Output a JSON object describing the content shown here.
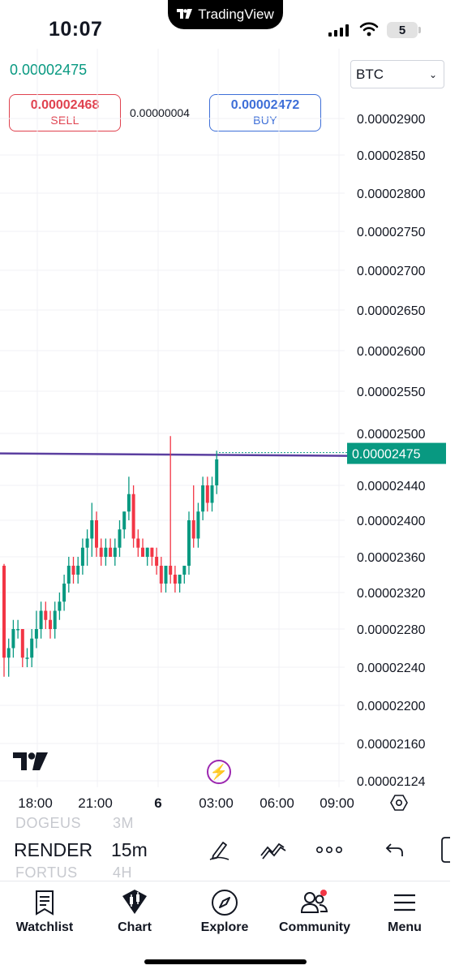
{
  "status_bar": {
    "time": "10:07",
    "island_label": "TradingView",
    "battery": "5"
  },
  "header": {
    "last_price": "0.00002475",
    "pair": "BTC",
    "sell": {
      "price": "0.00002468",
      "label": "SELL"
    },
    "buy": {
      "price": "0.00002472",
      "label": "BUY"
    },
    "spread": "0.00000004"
  },
  "colors": {
    "up": "#089981",
    "down": "#f23645",
    "line": "#5b3fa0",
    "sell": "#e0424f",
    "buy": "#3e6fd8"
  },
  "chart_data": {
    "type": "candlestick",
    "price_axis_labels": [
      "0.00002900",
      "0.00002850",
      "0.00002800",
      "0.00002750",
      "0.00002700",
      "0.00002650",
      "0.00002600",
      "0.00002550",
      "0.00002500",
      "0.00002440",
      "0.00002400",
      "0.00002360",
      "0.00002320",
      "0.00002280",
      "0.00002240",
      "0.00002200",
      "0.00002160",
      "0.00002124"
    ],
    "current_price_label": "0.00002475",
    "horizontal_line": 2.476e-05,
    "time_labels": [
      "18:00",
      "21:00",
      "6",
      "03:00",
      "06:00",
      "09:00"
    ],
    "candles": [
      {
        "o": 2.35e-05,
        "h": 2.352e-05,
        "l": 2.23e-05,
        "c": 2.25e-05
      },
      {
        "o": 2.25e-05,
        "h": 2.27e-05,
        "l": 2.23e-05,
        "c": 2.26e-05
      },
      {
        "o": 2.26e-05,
        "h": 2.29e-05,
        "l": 2.25e-05,
        "c": 2.28e-05
      },
      {
        "o": 2.28e-05,
        "h": 2.29e-05,
        "l": 2.27e-05,
        "c": 2.28e-05
      },
      {
        "o": 2.28e-05,
        "h": 2.28e-05,
        "l": 2.24e-05,
        "c": 2.25e-05
      },
      {
        "o": 2.25e-05,
        "h": 2.26e-05,
        "l": 2.24e-05,
        "c": 2.25e-05
      },
      {
        "o": 2.25e-05,
        "h": 2.28e-05,
        "l": 2.24e-05,
        "c": 2.27e-05
      },
      {
        "o": 2.27e-05,
        "h": 2.3e-05,
        "l": 2.26e-05,
        "c": 2.28e-05
      },
      {
        "o": 2.28e-05,
        "h": 2.31e-05,
        "l": 2.27e-05,
        "c": 2.3e-05
      },
      {
        "o": 2.3e-05,
        "h": 2.31e-05,
        "l": 2.28e-05,
        "c": 2.29e-05
      },
      {
        "o": 2.29e-05,
        "h": 2.3e-05,
        "l": 2.27e-05,
        "c": 2.28e-05
      },
      {
        "o": 2.28e-05,
        "h": 2.31e-05,
        "l": 2.27e-05,
        "c": 2.3e-05
      },
      {
        "o": 2.3e-05,
        "h": 2.32e-05,
        "l": 2.29e-05,
        "c": 2.31e-05
      },
      {
        "o": 2.31e-05,
        "h": 2.34e-05,
        "l": 2.3e-05,
        "c": 2.33e-05
      },
      {
        "o": 2.33e-05,
        "h": 2.36e-05,
        "l": 2.32e-05,
        "c": 2.35e-05
      },
      {
        "o": 2.35e-05,
        "h": 2.36e-05,
        "l": 2.33e-05,
        "c": 2.34e-05
      },
      {
        "o": 2.34e-05,
        "h": 2.36e-05,
        "l": 2.33e-05,
        "c": 2.35e-05
      },
      {
        "o": 2.35e-05,
        "h": 2.38e-05,
        "l": 2.34e-05,
        "c": 2.37e-05
      },
      {
        "o": 2.37e-05,
        "h": 2.39e-05,
        "l": 2.35e-05,
        "c": 2.38e-05
      },
      {
        "o": 2.38e-05,
        "h": 2.42e-05,
        "l": 2.36e-05,
        "c": 2.4e-05
      },
      {
        "o": 2.4e-05,
        "h": 2.41e-05,
        "l": 2.36e-05,
        "c": 2.37e-05
      },
      {
        "o": 2.37e-05,
        "h": 2.38e-05,
        "l": 2.35e-05,
        "c": 2.36e-05
      },
      {
        "o": 2.36e-05,
        "h": 2.38e-05,
        "l": 2.35e-05,
        "c": 2.37e-05
      },
      {
        "o": 2.37e-05,
        "h": 2.38e-05,
        "l": 2.36e-05,
        "c": 2.36e-05
      },
      {
        "o": 2.36e-05,
        "h": 2.38e-05,
        "l": 2.35e-05,
        "c": 2.37e-05
      },
      {
        "o": 2.37e-05,
        "h": 2.4e-05,
        "l": 2.36e-05,
        "c": 2.39e-05
      },
      {
        "o": 2.39e-05,
        "h": 2.41e-05,
        "l": 2.38e-05,
        "c": 2.41e-05
      },
      {
        "o": 2.41e-05,
        "h": 2.45e-05,
        "l": 2.4e-05,
        "c": 2.43e-05
      },
      {
        "o": 2.43e-05,
        "h": 2.44e-05,
        "l": 2.37e-05,
        "c": 2.38e-05
      },
      {
        "o": 2.38e-05,
        "h": 2.39e-05,
        "l": 2.36e-05,
        "c": 2.37e-05
      },
      {
        "o": 2.37e-05,
        "h": 2.38e-05,
        "l": 2.36e-05,
        "c": 2.36e-05
      },
      {
        "o": 2.36e-05,
        "h": 2.37e-05,
        "l": 2.35e-05,
        "c": 2.37e-05
      },
      {
        "o": 2.37e-05,
        "h": 2.37e-05,
        "l": 2.35e-05,
        "c": 2.36e-05
      },
      {
        "o": 2.36e-05,
        "h": 2.37e-05,
        "l": 2.34e-05,
        "c": 2.35e-05
      },
      {
        "o": 2.35e-05,
        "h": 2.36e-05,
        "l": 2.32e-05,
        "c": 2.33e-05
      },
      {
        "o": 2.33e-05,
        "h": 2.35e-05,
        "l": 2.32e-05,
        "c": 2.35e-05
      },
      {
        "o": 2.35e-05,
        "h": 2.497e-05,
        "l": 2.33e-05,
        "c": 2.34e-05
      },
      {
        "o": 2.34e-05,
        "h": 2.35e-05,
        "l": 2.32e-05,
        "c": 2.33e-05
      },
      {
        "o": 2.33e-05,
        "h": 2.34e-05,
        "l": 2.32e-05,
        "c": 2.34e-05
      },
      {
        "o": 2.34e-05,
        "h": 2.35e-05,
        "l": 2.33e-05,
        "c": 2.35e-05
      },
      {
        "o": 2.35e-05,
        "h": 2.41e-05,
        "l": 2.34e-05,
        "c": 2.4e-05
      },
      {
        "o": 2.4e-05,
        "h": 2.44e-05,
        "l": 2.37e-05,
        "c": 2.38e-05
      },
      {
        "o": 2.38e-05,
        "h": 2.42e-05,
        "l": 2.37e-05,
        "c": 2.41e-05
      },
      {
        "o": 2.41e-05,
        "h": 2.45e-05,
        "l": 2.4e-05,
        "c": 2.44e-05
      },
      {
        "o": 2.44e-05,
        "h": 2.45e-05,
        "l": 2.41e-05,
        "c": 2.42e-05
      },
      {
        "o": 2.42e-05,
        "h": 2.45e-05,
        "l": 2.41e-05,
        "c": 2.44e-05
      },
      {
        "o": 2.44e-05,
        "h": 2.48e-05,
        "l": 2.43e-05,
        "c": 2.47e-05
      }
    ]
  },
  "symbol_row": {
    "ghost_above": [
      "DOGEUS",
      "3M"
    ],
    "symbol": "RENDER",
    "interval": "15m",
    "ghost_below": [
      "FORTUS",
      "4H"
    ]
  },
  "tabs": [
    {
      "label": "Watchlist",
      "icon": "watchlist-icon"
    },
    {
      "label": "Chart",
      "icon": "chart-icon"
    },
    {
      "label": "Explore",
      "icon": "compass-icon"
    },
    {
      "label": "Community",
      "icon": "community-icon"
    },
    {
      "label": "Menu",
      "icon": "menu-icon"
    }
  ]
}
